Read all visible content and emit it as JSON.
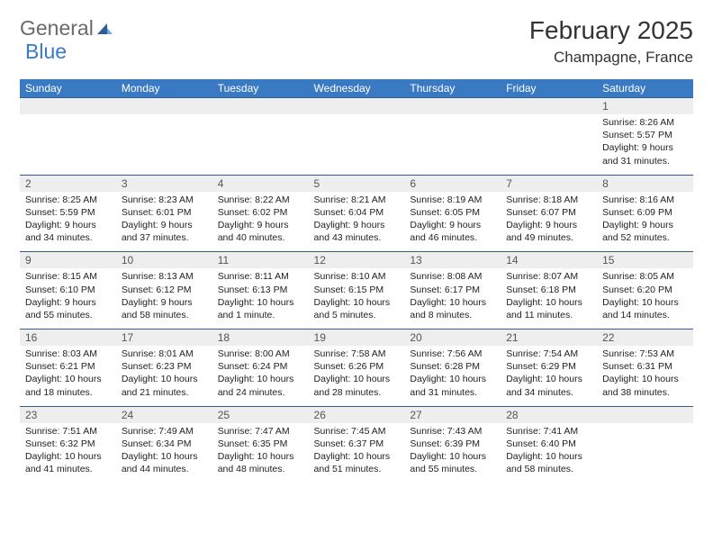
{
  "logo": {
    "part1": "General",
    "part2": "Blue"
  },
  "title": "February 2025",
  "location": "Champagne, France",
  "colors": {
    "header_bg": "#3a7ac2",
    "header_text": "#ffffff",
    "daynum_bg": "#eeeeee",
    "daynum_text": "#555555",
    "week_border": "#2b5e98",
    "body_text": "#222222",
    "logo_gray": "#6a6a6a",
    "logo_blue": "#3a7ac2"
  },
  "typography": {
    "title_fontsize": 28,
    "location_fontsize": 17,
    "dayhead_fontsize": 12,
    "daynum_fontsize": 12,
    "detail_fontsize": 10.5
  },
  "day_names": [
    "Sunday",
    "Monday",
    "Tuesday",
    "Wednesday",
    "Thursday",
    "Friday",
    "Saturday"
  ],
  "weeks": [
    [
      null,
      null,
      null,
      null,
      null,
      null,
      {
        "n": "1",
        "sunrise": "8:26 AM",
        "sunset": "5:57 PM",
        "daylight": "9 hours and 31 minutes."
      }
    ],
    [
      {
        "n": "2",
        "sunrise": "8:25 AM",
        "sunset": "5:59 PM",
        "daylight": "9 hours and 34 minutes."
      },
      {
        "n": "3",
        "sunrise": "8:23 AM",
        "sunset": "6:01 PM",
        "daylight": "9 hours and 37 minutes."
      },
      {
        "n": "4",
        "sunrise": "8:22 AM",
        "sunset": "6:02 PM",
        "daylight": "9 hours and 40 minutes."
      },
      {
        "n": "5",
        "sunrise": "8:21 AM",
        "sunset": "6:04 PM",
        "daylight": "9 hours and 43 minutes."
      },
      {
        "n": "6",
        "sunrise": "8:19 AM",
        "sunset": "6:05 PM",
        "daylight": "9 hours and 46 minutes."
      },
      {
        "n": "7",
        "sunrise": "8:18 AM",
        "sunset": "6:07 PM",
        "daylight": "9 hours and 49 minutes."
      },
      {
        "n": "8",
        "sunrise": "8:16 AM",
        "sunset": "6:09 PM",
        "daylight": "9 hours and 52 minutes."
      }
    ],
    [
      {
        "n": "9",
        "sunrise": "8:15 AM",
        "sunset": "6:10 PM",
        "daylight": "9 hours and 55 minutes."
      },
      {
        "n": "10",
        "sunrise": "8:13 AM",
        "sunset": "6:12 PM",
        "daylight": "9 hours and 58 minutes."
      },
      {
        "n": "11",
        "sunrise": "8:11 AM",
        "sunset": "6:13 PM",
        "daylight": "10 hours and 1 minute."
      },
      {
        "n": "12",
        "sunrise": "8:10 AM",
        "sunset": "6:15 PM",
        "daylight": "10 hours and 5 minutes."
      },
      {
        "n": "13",
        "sunrise": "8:08 AM",
        "sunset": "6:17 PM",
        "daylight": "10 hours and 8 minutes."
      },
      {
        "n": "14",
        "sunrise": "8:07 AM",
        "sunset": "6:18 PM",
        "daylight": "10 hours and 11 minutes."
      },
      {
        "n": "15",
        "sunrise": "8:05 AM",
        "sunset": "6:20 PM",
        "daylight": "10 hours and 14 minutes."
      }
    ],
    [
      {
        "n": "16",
        "sunrise": "8:03 AM",
        "sunset": "6:21 PM",
        "daylight": "10 hours and 18 minutes."
      },
      {
        "n": "17",
        "sunrise": "8:01 AM",
        "sunset": "6:23 PM",
        "daylight": "10 hours and 21 minutes."
      },
      {
        "n": "18",
        "sunrise": "8:00 AM",
        "sunset": "6:24 PM",
        "daylight": "10 hours and 24 minutes."
      },
      {
        "n": "19",
        "sunrise": "7:58 AM",
        "sunset": "6:26 PM",
        "daylight": "10 hours and 28 minutes."
      },
      {
        "n": "20",
        "sunrise": "7:56 AM",
        "sunset": "6:28 PM",
        "daylight": "10 hours and 31 minutes."
      },
      {
        "n": "21",
        "sunrise": "7:54 AM",
        "sunset": "6:29 PM",
        "daylight": "10 hours and 34 minutes."
      },
      {
        "n": "22",
        "sunrise": "7:53 AM",
        "sunset": "6:31 PM",
        "daylight": "10 hours and 38 minutes."
      }
    ],
    [
      {
        "n": "23",
        "sunrise": "7:51 AM",
        "sunset": "6:32 PM",
        "daylight": "10 hours and 41 minutes."
      },
      {
        "n": "24",
        "sunrise": "7:49 AM",
        "sunset": "6:34 PM",
        "daylight": "10 hours and 44 minutes."
      },
      {
        "n": "25",
        "sunrise": "7:47 AM",
        "sunset": "6:35 PM",
        "daylight": "10 hours and 48 minutes."
      },
      {
        "n": "26",
        "sunrise": "7:45 AM",
        "sunset": "6:37 PM",
        "daylight": "10 hours and 51 minutes."
      },
      {
        "n": "27",
        "sunrise": "7:43 AM",
        "sunset": "6:39 PM",
        "daylight": "10 hours and 55 minutes."
      },
      {
        "n": "28",
        "sunrise": "7:41 AM",
        "sunset": "6:40 PM",
        "daylight": "10 hours and 58 minutes."
      },
      null
    ]
  ],
  "labels": {
    "sunrise": "Sunrise: ",
    "sunset": "Sunset: ",
    "daylight": "Daylight: "
  }
}
